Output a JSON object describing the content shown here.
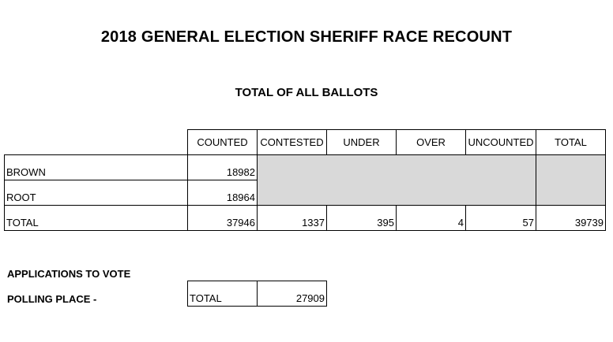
{
  "title": "2018 GENERAL ELECTION SHERIFF RACE RECOUNT",
  "subtitle": "TOTAL OF ALL BALLOTS",
  "table": {
    "headers": [
      "COUNTED",
      "CONTESTED",
      "UNDER",
      "OVER",
      "UNCOUNTED",
      "TOTAL"
    ],
    "rows": [
      {
        "label": "BROWN",
        "counted": "18982"
      },
      {
        "label": "ROOT",
        "counted": "18964"
      },
      {
        "label": "TOTAL",
        "counted": "37946",
        "contested": "1337",
        "under": "395",
        "over": "4",
        "uncounted": "57",
        "total": "39739"
      }
    ]
  },
  "applications": {
    "heading": "APPLICATIONS TO VOTE",
    "polling_label": "POLLING PLACE -",
    "total_label": "TOTAL",
    "total_value": "27909"
  }
}
